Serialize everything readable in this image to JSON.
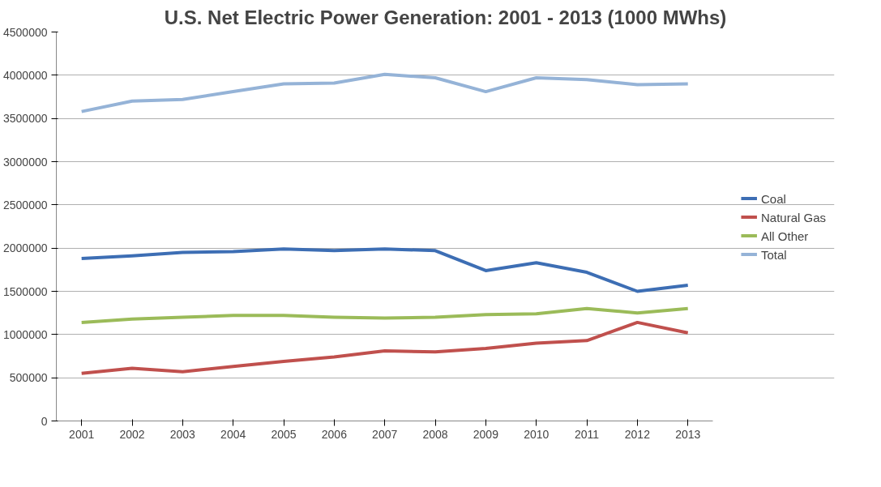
{
  "chart_data": {
    "type": "line",
    "title": "U.S. Net Electric Power Generation: 2001 - 2013 (1000 MWhs)",
    "categories": [
      "2001",
      "2002",
      "2003",
      "2004",
      "2005",
      "2006",
      "2007",
      "2008",
      "2009",
      "2010",
      "2011",
      "2012",
      "2013"
    ],
    "series": [
      {
        "name": "Coal",
        "color": "#3d6eb4",
        "values": [
          1880000,
          1910000,
          1950000,
          1960000,
          1990000,
          1970000,
          1990000,
          1970000,
          1740000,
          1830000,
          1720000,
          1500000,
          1570000
        ]
      },
      {
        "name": "Natural Gas",
        "color": "#c0504d",
        "values": [
          550000,
          610000,
          570000,
          630000,
          690000,
          740000,
          810000,
          800000,
          840000,
          900000,
          930000,
          1140000,
          1020000
        ]
      },
      {
        "name": "All Other",
        "color": "#9bbb59",
        "values": [
          1140000,
          1180000,
          1200000,
          1220000,
          1220000,
          1200000,
          1190000,
          1200000,
          1230000,
          1240000,
          1300000,
          1250000,
          1300000
        ]
      },
      {
        "name": "Total",
        "color": "#95b3d7",
        "values": [
          3580000,
          3700000,
          3720000,
          3810000,
          3900000,
          3910000,
          4010000,
          3970000,
          3810000,
          3970000,
          3950000,
          3890000,
          3900000
        ]
      }
    ],
    "ylim": [
      0,
      4500000
    ],
    "yticks": [
      0,
      500000,
      1000000,
      1500000,
      2000000,
      2500000,
      3000000,
      3500000,
      4000000,
      4500000
    ],
    "grid": "y",
    "legend": "right",
    "line_style": "solid"
  }
}
